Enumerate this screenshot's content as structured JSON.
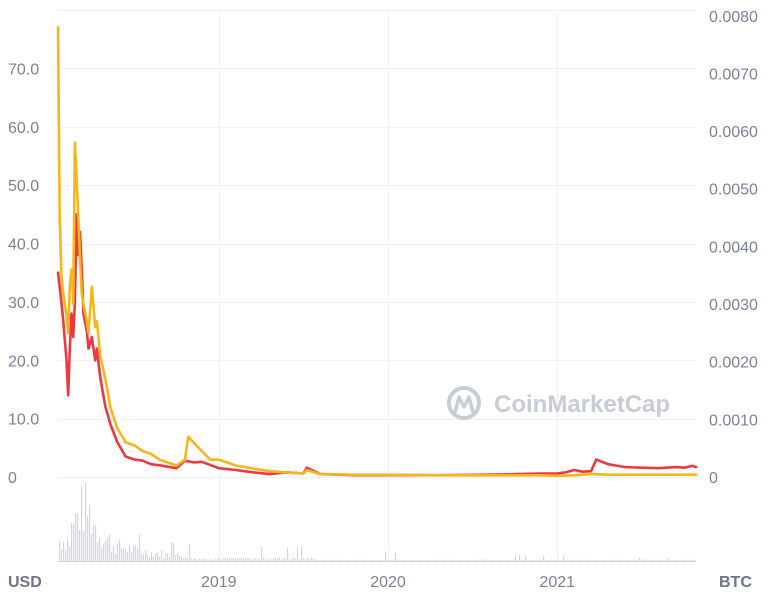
{
  "watermark": "CoinMarketCap",
  "chart_data": {
    "type": "line",
    "xlabel": "",
    "left_unit": "USD",
    "right_unit": "BTC",
    "x_ticks": [
      "2019",
      "2020",
      "2021"
    ],
    "left_ticks": [
      "0",
      "10.0",
      "20.0",
      "30.0",
      "40.0",
      "50.0",
      "60.0",
      "70.0"
    ],
    "right_ticks": [
      "0",
      "0.0010",
      "0.0020",
      "0.0030",
      "0.0040",
      "0.0050",
      "0.0060",
      "0.0070",
      "0.0080"
    ],
    "ylim_left": [
      0,
      80
    ],
    "ylim_right": [
      0,
      0.0081
    ],
    "x_range": [
      2018.05,
      2021.82
    ],
    "grid": true,
    "colors": {
      "usd": "#ea3943",
      "btc": "#f7b51c",
      "volume": "#cfd6e4",
      "grid": "#eff2f5"
    },
    "series": [
      {
        "key": "usd",
        "axis": "left",
        "x": [
          2018.05,
          2018.07,
          2018.08,
          2018.1,
          2018.11,
          2018.12,
          2018.13,
          2018.14,
          2018.15,
          2018.16,
          2018.17,
          2018.18,
          2018.19,
          2018.2,
          2018.22,
          2018.23,
          2018.25,
          2018.27,
          2018.28,
          2018.3,
          2018.33,
          2018.36,
          2018.4,
          2018.45,
          2018.5,
          2018.55,
          2018.6,
          2018.65,
          2018.75,
          2018.8,
          2018.85,
          2018.9,
          2019.0,
          2019.1,
          2019.2,
          2019.3,
          2019.4,
          2019.5,
          2019.52,
          2019.6,
          2019.8,
          2020.0,
          2020.3,
          2020.6,
          2020.9,
          2021.0,
          2021.05,
          2021.1,
          2021.15,
          2021.2,
          2021.23,
          2021.3,
          2021.4,
          2021.5,
          2021.6,
          2021.7,
          2021.75,
          2021.8,
          2021.82
        ],
        "values": [
          35,
          30,
          27,
          20,
          14,
          22,
          28,
          24,
          30,
          45,
          38,
          42,
          36,
          28,
          25,
          22,
          24,
          20,
          22,
          17,
          12,
          9,
          6,
          3.5,
          3,
          2.8,
          2.2,
          2,
          1.5,
          2.8,
          2.5,
          2.6,
          1.5,
          1.2,
          0.8,
          0.5,
          0.8,
          0.6,
          1.6,
          0.5,
          0.3,
          0.3,
          0.3,
          0.4,
          0.6,
          0.6,
          0.8,
          1.2,
          0.9,
          1.0,
          3.0,
          2.2,
          1.7,
          1.6,
          1.5,
          1.7,
          1.6,
          1.9,
          1.7
        ]
      },
      {
        "key": "btc",
        "axis": "right",
        "x": [
          2018.05,
          2018.06,
          2018.07,
          2018.08,
          2018.1,
          2018.11,
          2018.12,
          2018.13,
          2018.14,
          2018.15,
          2018.16,
          2018.17,
          2018.18,
          2018.19,
          2018.2,
          2018.22,
          2018.23,
          2018.25,
          2018.27,
          2018.28,
          2018.3,
          2018.33,
          2018.36,
          2018.4,
          2018.45,
          2018.5,
          2018.55,
          2018.6,
          2018.65,
          2018.7,
          2018.75,
          2018.8,
          2018.82,
          2018.85,
          2018.9,
          2018.95,
          2019.0,
          2019.1,
          2019.2,
          2019.3,
          2019.4,
          2019.5,
          2019.52,
          2019.6,
          2019.8,
          2020.0,
          2020.3,
          2020.6,
          2020.9,
          2021.0,
          2021.1,
          2021.2,
          2021.3,
          2021.5,
          2021.7,
          2021.82
        ],
        "values": [
          0.0078,
          0.0045,
          0.0035,
          0.0032,
          0.0028,
          0.0025,
          0.0033,
          0.0036,
          0.003,
          0.0058,
          0.0052,
          0.0045,
          0.0038,
          0.0032,
          0.003,
          0.0027,
          0.0025,
          0.0033,
          0.0026,
          0.0027,
          0.0021,
          0.0017,
          0.0012,
          0.00085,
          0.0006,
          0.00055,
          0.00045,
          0.0004,
          0.0003,
          0.00025,
          0.0002,
          0.0003,
          0.0007,
          0.0006,
          0.00045,
          0.0003,
          0.0003,
          0.0002,
          0.00015,
          0.0001,
          8e-05,
          6e-05,
          0.00012,
          5e-05,
          4e-05,
          4e-05,
          3e-05,
          3e-05,
          3e-05,
          2e-05,
          3e-05,
          5e-05,
          4e-05,
          4e-05,
          4e-05,
          4e-05
        ]
      }
    ]
  }
}
